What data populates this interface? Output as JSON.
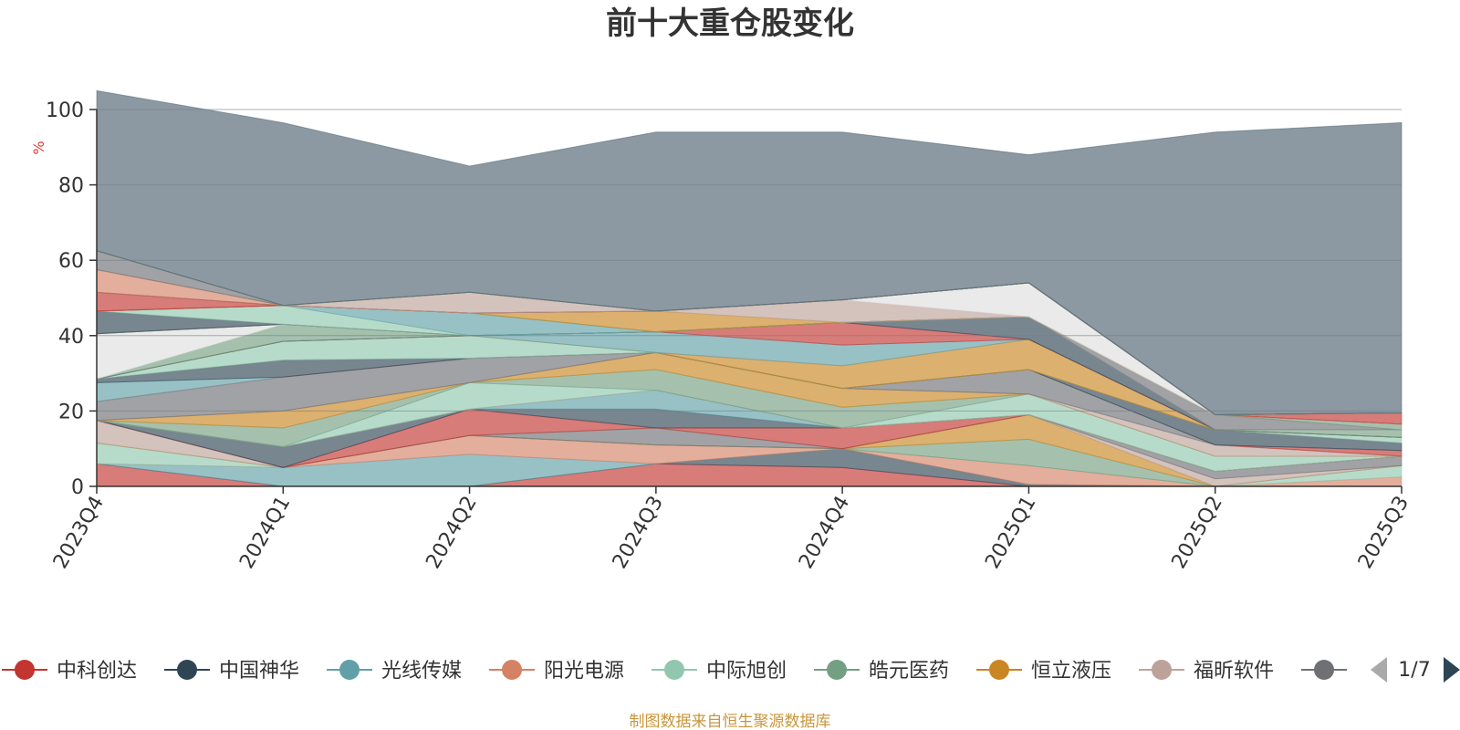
{
  "chart_data": {
    "type": "area",
    "stacked": true,
    "title": "前十大重仓股变化",
    "ylabel": "%",
    "ylim": [
      0,
      100
    ],
    "yticks": [
      "0",
      "20",
      "40",
      "60",
      "80",
      "100"
    ],
    "categories": [
      "2023Q4",
      "2024Q1",
      "2024Q2",
      "2024Q3",
      "2024Q4",
      "2025Q1",
      "2025Q2",
      "2025Q3"
    ],
    "grid": true,
    "legend_position": "bottom",
    "legend_page": "1/7",
    "legend": [
      {
        "name": "中科创达",
        "color": "#c23531"
      },
      {
        "name": "中国神华",
        "color": "#2f4554"
      },
      {
        "name": "光线传媒",
        "color": "#61a0a8"
      },
      {
        "name": "阳光电源",
        "color": "#d48265"
      },
      {
        "name": "中际旭创",
        "color": "#91c7ae"
      },
      {
        "name": "皓元医药",
        "color": "#749f83"
      },
      {
        "name": "恒立液压",
        "color": "#ca8622"
      },
      {
        "name": "福昕软件",
        "color": "#bda29a"
      },
      {
        "name": "",
        "color": "#6e7074"
      }
    ],
    "series": [
      {
        "values": [
          6.0,
          0.0,
          0.0,
          6.0,
          5.0,
          0.0,
          0.0,
          0.0
        ],
        "color": "#c23531"
      },
      {
        "values": [
          0.0,
          0.0,
          0.0,
          0.0,
          5.0,
          0.5,
          0.0,
          0.0
        ],
        "color": "#2f4554"
      },
      {
        "values": [
          0.0,
          5.0,
          8.5,
          0.0,
          0.0,
          0.0,
          0.0,
          0.0
        ],
        "color": "#61a0a8"
      },
      {
        "values": [
          0.0,
          0.0,
          5.0,
          5.0,
          0.0,
          5.0,
          0.0,
          2.5
        ],
        "color": "#d48265"
      },
      {
        "values": [
          5.5,
          0.0,
          0.0,
          0.0,
          0.0,
          0.0,
          0.0,
          3.0
        ],
        "color": "#91c7ae"
      },
      {
        "values": [
          0.0,
          0.0,
          0.0,
          0.0,
          0.0,
          7.0,
          0.0,
          0.0
        ],
        "color": "#749f83"
      },
      {
        "values": [
          0.0,
          0.0,
          0.0,
          0.0,
          0.0,
          6.5,
          0.0,
          0.0
        ],
        "color": "#ca8622"
      },
      {
        "values": [
          6.0,
          0.0,
          0.0,
          0.0,
          0.0,
          0.0,
          2.0,
          0.0
        ],
        "color": "#bda29a"
      },
      {
        "values": [
          0.0,
          0.0,
          0.0,
          4.5,
          0.0,
          0.0,
          2.0,
          2.5
        ],
        "color": "#6e7074"
      },
      {
        "values": [
          0.0,
          0.0,
          7.0,
          0.0,
          5.5,
          0.0,
          0.0,
          0.0
        ],
        "color": "#c23531"
      },
      {
        "values": [
          0.0,
          5.5,
          0.0,
          5.0,
          0.0,
          0.0,
          0.0,
          0.0
        ],
        "color": "#2f4554"
      },
      {
        "values": [
          0.0,
          0.0,
          0.0,
          5.0,
          0.0,
          0.0,
          0.0,
          0.0
        ],
        "color": "#61a0a8"
      },
      {
        "values": [
          0.0,
          0.0,
          0.0,
          0.0,
          0.0,
          0.0,
          0.0,
          0.0
        ],
        "color": "#d48265"
      },
      {
        "values": [
          0.0,
          0.0,
          7.0,
          0.0,
          0.0,
          5.5,
          4.0,
          0.0
        ],
        "color": "#91c7ae"
      },
      {
        "values": [
          0.0,
          5.0,
          0.0,
          5.5,
          5.5,
          0.0,
          0.0,
          0.0
        ],
        "color": "#749f83"
      },
      {
        "values": [
          0.0,
          4.5,
          0.0,
          4.5,
          5.0,
          0.0,
          0.0,
          0.0
        ],
        "color": "#ca8622"
      },
      {
        "values": [
          0.0,
          0.0,
          0.0,
          0.0,
          0.0,
          0.0,
          3.0,
          0.0
        ],
        "color": "#bda29a"
      },
      {
        "values": [
          5.0,
          9.0,
          6.5,
          0.0,
          0.0,
          6.5,
          0.0,
          0.0
        ],
        "color": "#6e7074"
      },
      {
        "values": [
          0.0,
          0.0,
          0.0,
          0.0,
          0.0,
          0.0,
          0.0,
          0.0
        ],
        "color": "#dedede"
      },
      {
        "values": [
          0.0,
          0.0,
          0.0,
          0.0,
          0.0,
          0.0,
          0.0,
          1.5
        ],
        "color": "#c23531"
      },
      {
        "values": [
          5.0,
          0.0,
          0.0,
          0.0,
          0.0,
          0.0,
          0.0,
          0.0
        ],
        "color": "#61a0a8"
      },
      {
        "values": [
          1.0,
          4.5,
          0.0,
          0.0,
          0.0,
          0.0,
          4.0,
          2.0
        ],
        "color": "#2f4554"
      },
      {
        "values": [
          0.0,
          5.0,
          6.0,
          0.0,
          0.0,
          0.0,
          0.0,
          1.5
        ],
        "color": "#91c7ae"
      },
      {
        "values": [
          0.0,
          0.0,
          0.0,
          0.0,
          6.0,
          8.0,
          0.0,
          0.0
        ],
        "color": "#ca8622"
      },
      {
        "values": [
          0.0,
          0.0,
          0.0,
          5.5,
          5.5,
          0.0,
          0.0,
          0.0
        ],
        "color": "#61a0a8"
      },
      {
        "values": [
          0.0,
          0.0,
          0.0,
          0.0,
          6.0,
          0.0,
          0.0,
          0.0
        ],
        "color": "#c23531"
      },
      {
        "values": [
          0.0,
          0.0,
          0.0,
          0.0,
          0.0,
          6.0,
          0.0,
          0.0
        ],
        "color": "#2f4554"
      },
      {
        "values": [
          0.0,
          4.5,
          0.0,
          0.0,
          0.0,
          0.0,
          0.0,
          2.0
        ],
        "color": "#749f83"
      },
      {
        "values": [
          12.0,
          0.0,
          0.0,
          0.0,
          0.0,
          0.0,
          0.0,
          0.0
        ],
        "color": "#dedede"
      },
      {
        "values": [
          0.0,
          0.0,
          0.0,
          0.0,
          0.0,
          0.0,
          4.0,
          0.0
        ],
        "color": "#6e7074"
      },
      {
        "values": [
          0.0,
          0.0,
          0.0,
          0.0,
          0.0,
          0.0,
          0.0,
          0.0
        ],
        "color": "#bda29a"
      },
      {
        "values": [
          0.0,
          0.0,
          0.0,
          0.0,
          0.0,
          0.0,
          0.0,
          1.5
        ],
        "color": "#749f83"
      },
      {
        "values": [
          6.0,
          0.0,
          0.0,
          0.0,
          0.0,
          0.0,
          0.0,
          0.0
        ],
        "color": "#2f4554"
      },
      {
        "values": [
          0.0,
          5.0,
          0.0,
          0.0,
          0.0,
          0.0,
          0.0,
          0.0
        ],
        "color": "#91c7ae"
      },
      {
        "values": [
          0.0,
          0.0,
          6.0,
          0.0,
          0.0,
          0.0,
          0.0,
          0.0
        ],
        "color": "#61a0a8"
      },
      {
        "values": [
          0.0,
          0.0,
          0.0,
          0.0,
          0.0,
          0.0,
          0.0,
          0.0
        ],
        "color": "#749f83"
      },
      {
        "values": [
          0.0,
          0.0,
          0.0,
          5.5,
          0.0,
          0.0,
          0.0,
          0.0
        ],
        "color": "#ca8622"
      },
      {
        "values": [
          0.0,
          0.0,
          0.0,
          0.0,
          6.0,
          0.0,
          0.0,
          0.0
        ],
        "color": "#bda29a"
      },
      {
        "values": [
          0.0,
          0.0,
          0.0,
          0.0,
          0.0,
          9.0,
          0.0,
          0.0
        ],
        "color": "#dedede"
      },
      {
        "values": [
          0.0,
          0.0,
          0.0,
          0.0,
          0.0,
          0.0,
          0.0,
          3.0
        ],
        "color": "#c23531"
      },
      {
        "values": [
          5.0,
          0.0,
          0.0,
          0.0,
          0.0,
          0.0,
          0.0,
          0.0
        ],
        "color": "#c23531"
      },
      {
        "values": [
          0.0,
          0.0,
          0.0,
          0.0,
          0.0,
          0.0,
          0.0,
          0.0
        ],
        "color": "#2f4554"
      },
      {
        "values": [
          6.0,
          0.0,
          0.0,
          0.0,
          0.0,
          0.0,
          0.0,
          0.0
        ],
        "color": "#d48265"
      },
      {
        "values": [
          0.0,
          0.0,
          5.5,
          0.0,
          0.0,
          0.0,
          0.0,
          0.0
        ],
        "color": "#bda29a"
      },
      {
        "values": [
          5.0,
          0.0,
          0.0,
          0.0,
          0.0,
          0.0,
          0.0,
          0.0
        ],
        "color": "#6e7074"
      },
      {
        "values": [
          0.0,
          0.0,
          0.0,
          0.0,
          0.0,
          0.0,
          0.0,
          0.0
        ],
        "color": "#ca8622"
      },
      {
        "values": [
          0.0,
          0.0,
          0.0,
          0.0,
          0.0,
          0.0,
          0.0,
          0.0
        ],
        "color": "#91c7ae"
      },
      {
        "values": [
          0.0,
          0.0,
          0.0,
          0.0,
          0.0,
          0.0,
          0.0,
          0.0
        ],
        "color": "#749f83"
      },
      {
        "values": [
          0.0,
          0.0,
          0.0,
          0.0,
          0.0,
          0.0,
          0.0,
          0.0
        ],
        "color": "#d48265"
      },
      {
        "values": [
          0.0,
          0.0,
          0.0,
          0.0,
          0.0,
          0.0,
          0.0,
          0.0
        ],
        "color": "#61a0a8"
      },
      {
        "values": [
          42.5,
          48.5,
          33.5,
          47.5,
          44.5,
          34.0,
          75.0,
          77.0
        ],
        "color": "#4e6270"
      }
    ]
  },
  "source_note": "制图数据来自恒生聚源数据库",
  "colors": {
    "background": "#ffffff",
    "axis": "#333333",
    "grid": "#6f7f88",
    "unit_label": "#e23b3b",
    "source_text": "#c9963b",
    "pager_active": "#2f4554",
    "pager_inactive": "#aaaaaa"
  },
  "icons": {
    "pager_prev": "triangle-left-icon",
    "pager_next": "triangle-right-icon",
    "legend_marker": "circle-line-icon"
  }
}
